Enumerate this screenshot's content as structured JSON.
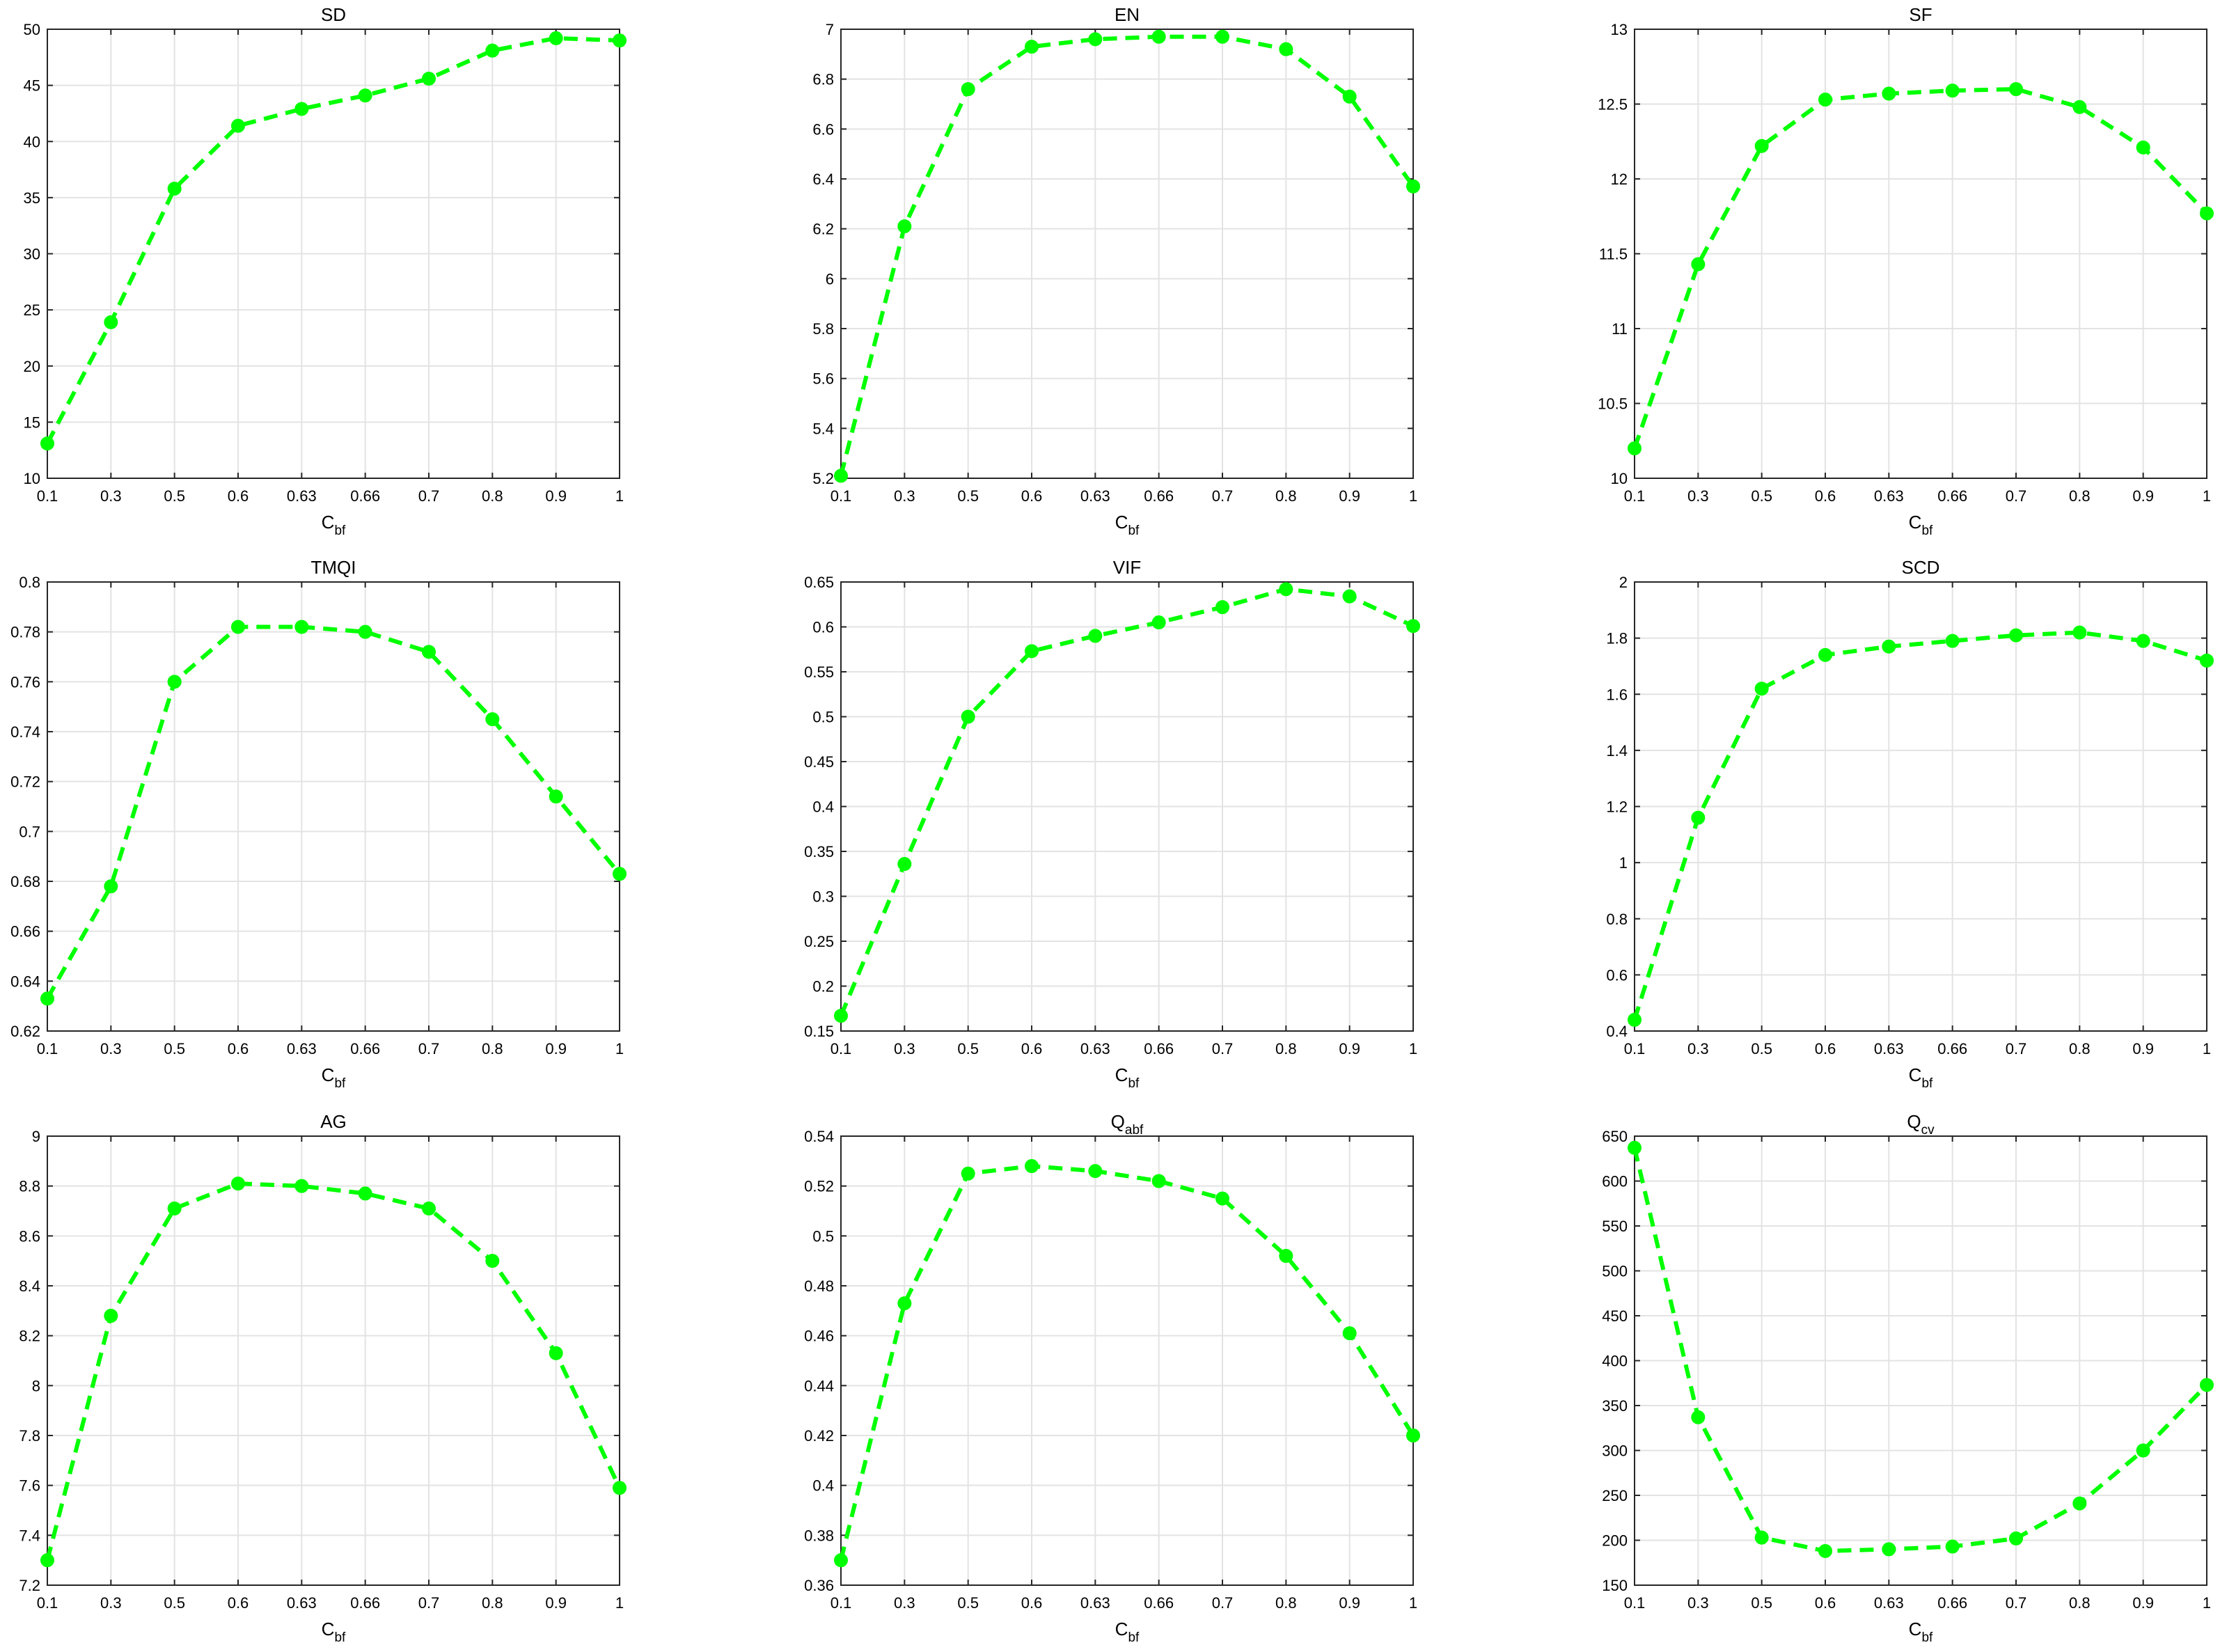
{
  "chart_data": [
    {
      "type": "line",
      "title": "SD",
      "xlabel": "C",
      "xlabel_sub": "bf",
      "categories": [
        "0.1",
        "0.3",
        "0.5",
        "0.6",
        "0.63",
        "0.66",
        "0.7",
        "0.8",
        "0.9",
        "1"
      ],
      "ylim": [
        10,
        50
      ],
      "yticks": [
        "10",
        "15",
        "20",
        "25",
        "30",
        "35",
        "40",
        "45",
        "50"
      ],
      "values": [
        13.1,
        23.9,
        35.8,
        41.4,
        42.9,
        44.1,
        45.6,
        48.1,
        49.2,
        49.0
      ],
      "color": "#00ff00",
      "grid": true
    },
    {
      "type": "line",
      "title": "EN",
      "xlabel": "C",
      "xlabel_sub": "bf",
      "categories": [
        "0.1",
        "0.3",
        "0.5",
        "0.6",
        "0.63",
        "0.66",
        "0.7",
        "0.8",
        "0.9",
        "1"
      ],
      "ylim": [
        5.2,
        7
      ],
      "yticks": [
        "5.2",
        "5.4",
        "5.6",
        "5.8",
        "6",
        "6.2",
        "6.4",
        "6.6",
        "6.8",
        "7"
      ],
      "values": [
        5.21,
        6.21,
        6.76,
        6.93,
        6.96,
        6.97,
        6.97,
        6.92,
        6.73,
        6.37
      ],
      "color": "#00ff00",
      "grid": true
    },
    {
      "type": "line",
      "title": "SF",
      "xlabel": "C",
      "xlabel_sub": "bf",
      "categories": [
        "0.1",
        "0.3",
        "0.5",
        "0.6",
        "0.63",
        "0.66",
        "0.7",
        "0.8",
        "0.9",
        "1"
      ],
      "ylim": [
        10,
        13
      ],
      "yticks": [
        "10",
        "10.5",
        "11",
        "11.5",
        "12",
        "12.5",
        "13"
      ],
      "values": [
        10.2,
        11.43,
        12.22,
        12.53,
        12.57,
        12.59,
        12.6,
        12.48,
        12.21,
        11.77
      ],
      "color": "#00ff00",
      "grid": true
    },
    {
      "type": "line",
      "title": "TMQI",
      "xlabel": "C",
      "xlabel_sub": "bf",
      "categories": [
        "0.1",
        "0.3",
        "0.5",
        "0.6",
        "0.63",
        "0.66",
        "0.7",
        "0.8",
        "0.9",
        "1"
      ],
      "ylim": [
        0.62,
        0.8
      ],
      "yticks": [
        "0.62",
        "0.64",
        "0.66",
        "0.68",
        "0.7",
        "0.72",
        "0.74",
        "0.76",
        "0.78",
        "0.8"
      ],
      "values": [
        0.633,
        0.678,
        0.76,
        0.782,
        0.782,
        0.78,
        0.772,
        0.745,
        0.714,
        0.683
      ],
      "color": "#00ff00",
      "grid": true
    },
    {
      "type": "line",
      "title": "VIF",
      "xlabel": "C",
      "xlabel_sub": "bf",
      "categories": [
        "0.1",
        "0.3",
        "0.5",
        "0.6",
        "0.63",
        "0.66",
        "0.7",
        "0.8",
        "0.9",
        "1"
      ],
      "ylim": [
        0.15,
        0.65
      ],
      "yticks": [
        "0.15",
        "0.2",
        "0.25",
        "0.3",
        "0.35",
        "0.4",
        "0.45",
        "0.5",
        "0.55",
        "0.6",
        "0.65"
      ],
      "values": [
        0.167,
        0.336,
        0.5,
        0.573,
        0.59,
        0.605,
        0.622,
        0.642,
        0.634,
        0.601
      ],
      "color": "#00ff00",
      "grid": true
    },
    {
      "type": "line",
      "title": "SCD",
      "xlabel": "C",
      "xlabel_sub": "bf",
      "categories": [
        "0.1",
        "0.3",
        "0.5",
        "0.6",
        "0.63",
        "0.66",
        "0.7",
        "0.8",
        "0.9",
        "1"
      ],
      "ylim": [
        0.4,
        2
      ],
      "yticks": [
        "0.4",
        "0.6",
        "0.8",
        "1",
        "1.2",
        "1.4",
        "1.6",
        "1.8",
        "2"
      ],
      "values": [
        0.44,
        1.16,
        1.62,
        1.74,
        1.77,
        1.79,
        1.81,
        1.82,
        1.79,
        1.72
      ],
      "color": "#00ff00",
      "grid": true
    },
    {
      "type": "line",
      "title": "AG",
      "xlabel": "C",
      "xlabel_sub": "bf",
      "categories": [
        "0.1",
        "0.3",
        "0.5",
        "0.6",
        "0.63",
        "0.66",
        "0.7",
        "0.8",
        "0.9",
        "1"
      ],
      "ylim": [
        7.2,
        9
      ],
      "yticks": [
        "7.2",
        "7.4",
        "7.6",
        "7.8",
        "8",
        "8.2",
        "8.4",
        "8.6",
        "8.8",
        "9"
      ],
      "values": [
        7.3,
        8.28,
        8.71,
        8.81,
        8.8,
        8.77,
        8.71,
        8.5,
        8.13,
        7.59
      ],
      "color": "#00ff00",
      "grid": true
    },
    {
      "type": "line",
      "title": "Q",
      "title_sub": "abf",
      "xlabel": "C",
      "xlabel_sub": "bf",
      "categories": [
        "0.1",
        "0.3",
        "0.5",
        "0.6",
        "0.63",
        "0.66",
        "0.7",
        "0.8",
        "0.9",
        "1"
      ],
      "ylim": [
        0.36,
        0.54
      ],
      "yticks": [
        "0.36",
        "0.38",
        "0.4",
        "0.42",
        "0.44",
        "0.46",
        "0.48",
        "0.5",
        "0.52",
        "0.54"
      ],
      "values": [
        0.37,
        0.473,
        0.525,
        0.528,
        0.526,
        0.522,
        0.515,
        0.492,
        0.461,
        0.42
      ],
      "color": "#00ff00",
      "grid": true
    },
    {
      "type": "line",
      "title": "Q",
      "title_sub": "cv",
      "xlabel": "C",
      "xlabel_sub": "bf",
      "categories": [
        "0.1",
        "0.3",
        "0.5",
        "0.6",
        "0.63",
        "0.66",
        "0.7",
        "0.8",
        "0.9",
        "1"
      ],
      "ylim": [
        150,
        650
      ],
      "yticks": [
        "150",
        "200",
        "250",
        "300",
        "350",
        "400",
        "450",
        "500",
        "550",
        "600",
        "650"
      ],
      "values": [
        637,
        337,
        203,
        188,
        190,
        193,
        202,
        241,
        300,
        373
      ],
      "color": "#00ff00",
      "grid": true
    }
  ]
}
